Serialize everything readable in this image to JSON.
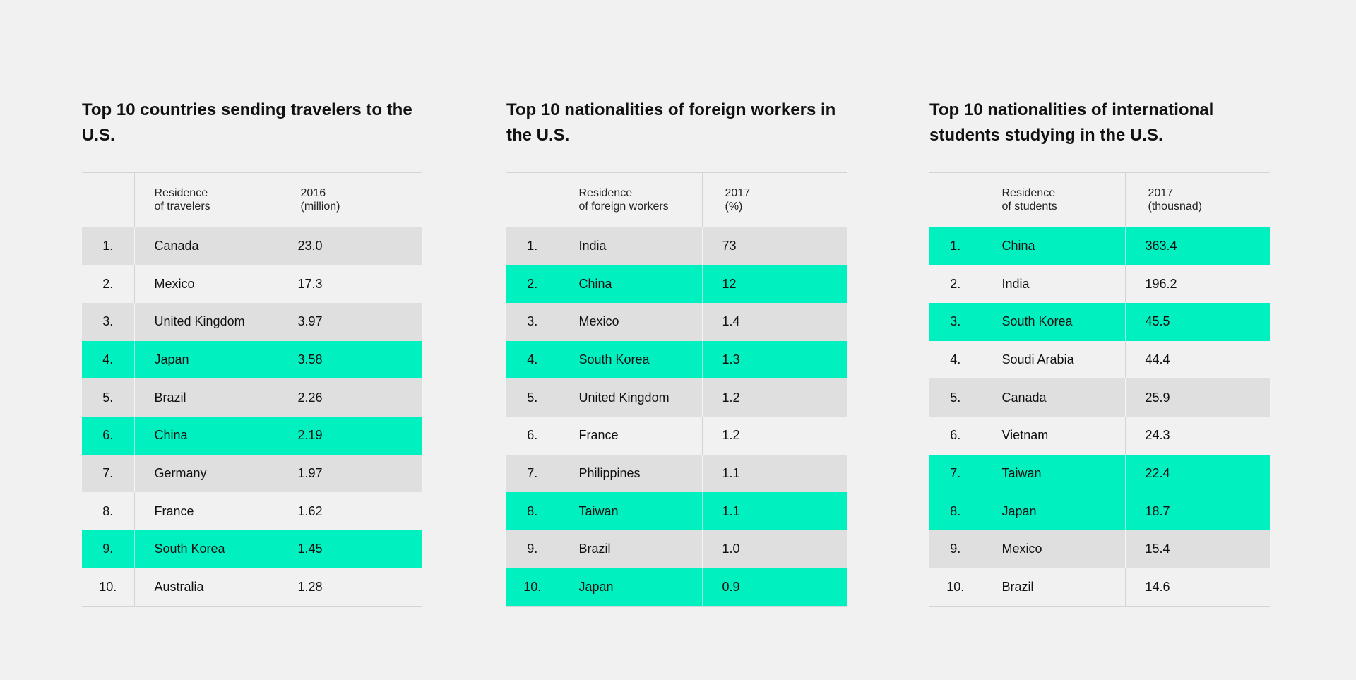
{
  "tables": [
    {
      "title": "Top 10 countries sending travelers to the U.S.",
      "header_country": "Residence\nof travelers",
      "header_value": "2016\n(million)",
      "rows": [
        {
          "rank": "1.",
          "country": "Canada",
          "value": "23.0",
          "shade": "gray"
        },
        {
          "rank": "2.",
          "country": "Mexico",
          "value": "17.3",
          "shade": "none"
        },
        {
          "rank": "3.",
          "country": "United Kingdom",
          "value": "3.97",
          "shade": "gray"
        },
        {
          "rank": "4.",
          "country": "Japan",
          "value": "3.58",
          "shade": "green"
        },
        {
          "rank": "5.",
          "country": "Brazil",
          "value": "2.26",
          "shade": "gray"
        },
        {
          "rank": "6.",
          "country": "China",
          "value": "2.19",
          "shade": "green"
        },
        {
          "rank": "7.",
          "country": "Germany",
          "value": "1.97",
          "shade": "gray"
        },
        {
          "rank": "8.",
          "country": "France",
          "value": "1.62",
          "shade": "none"
        },
        {
          "rank": "9.",
          "country": "South Korea",
          "value": "1.45",
          "shade": "green"
        },
        {
          "rank": "10.",
          "country": "Australia",
          "value": "1.28",
          "shade": "none"
        }
      ]
    },
    {
      "title": "Top 10 nationalities of foreign workers in the U.S.",
      "header_country": "Residence\nof foreign workers",
      "header_value": "2017\n(%)",
      "rows": [
        {
          "rank": "1.",
          "country": "India",
          "value": "73",
          "shade": "gray"
        },
        {
          "rank": "2.",
          "country": "China",
          "value": "12",
          "shade": "green"
        },
        {
          "rank": "3.",
          "country": "Mexico",
          "value": "1.4",
          "shade": "gray"
        },
        {
          "rank": "4.",
          "country": "South Korea",
          "value": "1.3",
          "shade": "green"
        },
        {
          "rank": "5.",
          "country": "United Kingdom",
          "value": "1.2",
          "shade": "gray"
        },
        {
          "rank": "6.",
          "country": "France",
          "value": "1.2",
          "shade": "none"
        },
        {
          "rank": "7.",
          "country": "Philippines",
          "value": "1.1",
          "shade": "gray"
        },
        {
          "rank": "8.",
          "country": "Taiwan",
          "value": "1.1",
          "shade": "green"
        },
        {
          "rank": "9.",
          "country": "Brazil",
          "value": "1.0",
          "shade": "gray"
        },
        {
          "rank": "10.",
          "country": "Japan",
          "value": "0.9",
          "shade": "green"
        }
      ]
    },
    {
      "title": "Top 10 nationalities of international students studying in the U.S.",
      "header_country": "Residence\nof students",
      "header_value": "2017\n(thousnad)",
      "rows": [
        {
          "rank": "1.",
          "country": "China",
          "value": "363.4",
          "shade": "green"
        },
        {
          "rank": "2.",
          "country": "India",
          "value": "196.2",
          "shade": "none"
        },
        {
          "rank": "3.",
          "country": "South Korea",
          "value": "45.5",
          "shade": "green"
        },
        {
          "rank": "4.",
          "country": "Soudi Arabia",
          "value": "44.4",
          "shade": "none"
        },
        {
          "rank": "5.",
          "country": "Canada",
          "value": "25.9",
          "shade": "gray"
        },
        {
          "rank": "6.",
          "country": "Vietnam",
          "value": "24.3",
          "shade": "none"
        },
        {
          "rank": "7.",
          "country": "Taiwan",
          "value": "22.4",
          "shade": "green"
        },
        {
          "rank": "8.",
          "country": "Japan",
          "value": "18.7",
          "shade": "green"
        },
        {
          "rank": "9.",
          "country": "Mexico",
          "value": "15.4",
          "shade": "gray"
        },
        {
          "rank": "10.",
          "country": "Brazil",
          "value": "14.6",
          "shade": "none"
        }
      ]
    }
  ],
  "colors": {
    "background": "#f1f1f1",
    "highlight_green": "#00f0c0",
    "row_gray": "#dfdfdf",
    "rule": "#d4d4d4"
  }
}
